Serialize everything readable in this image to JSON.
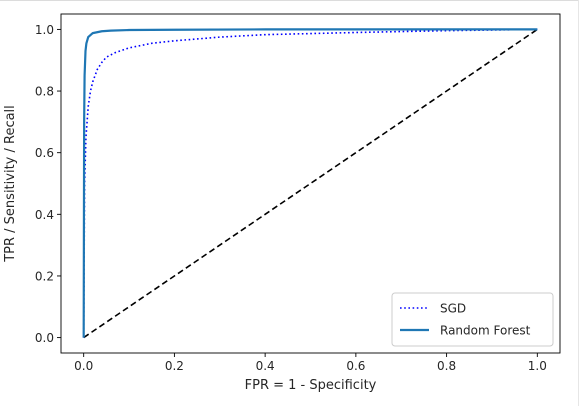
{
  "chart_data": {
    "type": "line",
    "xlabel": "FPR = 1 - Specificity",
    "ylabel": "TPR / Sensitivity / Recall",
    "xlim": [
      -0.05,
      1.05
    ],
    "ylim": [
      -0.05,
      1.05
    ],
    "xticks": [
      0.0,
      0.2,
      0.4,
      0.6,
      0.8,
      1.0
    ],
    "yticks": [
      0.0,
      0.2,
      0.4,
      0.6,
      0.8,
      1.0
    ],
    "xtick_labels": [
      "0.0",
      "0.2",
      "0.4",
      "0.6",
      "0.8",
      "1.0"
    ],
    "ytick_labels": [
      "0.0",
      "0.2",
      "0.4",
      "0.6",
      "0.8",
      "1.0"
    ],
    "grid": false,
    "legend": "lower-right",
    "series": [
      {
        "name": "SGD",
        "style": "dotted",
        "color": "#0000ff",
        "x": [
          0,
          0.002,
          0.005,
          0.01,
          0.015,
          0.02,
          0.03,
          0.04,
          0.05,
          0.07,
          0.1,
          0.15,
          0.2,
          0.3,
          0.4,
          0.6,
          0.8,
          1.0
        ],
        "y": [
          0,
          0.5,
          0.65,
          0.75,
          0.8,
          0.83,
          0.87,
          0.893,
          0.91,
          0.925,
          0.94,
          0.955,
          0.963,
          0.975,
          0.983,
          0.99,
          0.996,
          1.0
        ]
      },
      {
        "name": "Random Forest",
        "style": "solid",
        "color": "#1f77b4",
        "x": [
          0,
          0.001,
          0.002,
          0.004,
          0.006,
          0.01,
          0.02,
          0.04,
          0.06,
          0.1,
          0.2,
          0.4,
          1.0
        ],
        "y": [
          0,
          0.7,
          0.85,
          0.93,
          0.955,
          0.975,
          0.988,
          0.994,
          0.996,
          0.998,
          0.999,
          1.0,
          1.0
        ]
      },
      {
        "name": "",
        "style": "dashed",
        "color": "#000000",
        "x": [
          0,
          1
        ],
        "y": [
          0,
          1
        ]
      }
    ]
  }
}
